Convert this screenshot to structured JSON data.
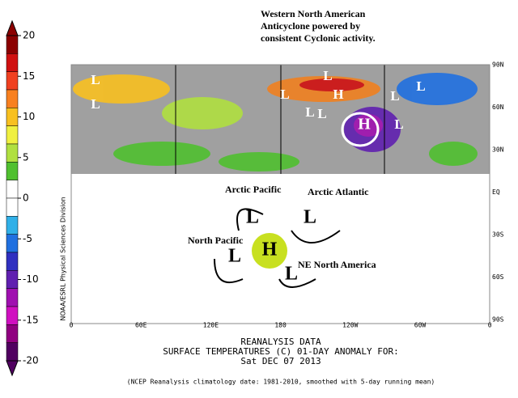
{
  "annotation": {
    "title_lines": [
      "Western North American",
      "Anticyclone powered by",
      "consistent Cyclonic activity."
    ]
  },
  "colorbar": {
    "ticks": [
      20,
      15,
      10,
      5,
      0,
      -5,
      -10,
      -15,
      -20
    ],
    "colors": [
      "#8b0000",
      "#d01010",
      "#f04020",
      "#f88020",
      "#f8c020",
      "#f0f040",
      "#b0e040",
      "#50c030",
      "#ffffff",
      "#ffffff",
      "#30b0e8",
      "#2070e0",
      "#3030c0",
      "#6020b0",
      "#a010b0",
      "#d010c0",
      "#900080",
      "#500060"
    ]
  },
  "map": {
    "lat_labels": [
      "90N",
      "60N",
      "30N",
      "EQ",
      "30S",
      "60S",
      "90S"
    ],
    "lon_labels": [
      "0",
      "60E",
      "120E",
      "180",
      "120W",
      "60W",
      "0"
    ],
    "credit": "NOAA/ESRL Physical Sciences Division",
    "map_letters": [
      "L",
      "L",
      "L",
      "L",
      "H",
      "L",
      "L",
      "L",
      "H",
      "L",
      "L"
    ]
  },
  "diagram": {
    "regions": [
      "Arctic Pacific",
      "Arctic Atlantic",
      "North Pacific",
      "NE North America"
    ],
    "letters": [
      "L",
      "L",
      "L",
      "H",
      "L"
    ]
  },
  "footer": {
    "line1": "REANALYSIS DATA",
    "line2": "SURFACE TEMPERATURES (C)    01-DAY ANOMALY FOR:",
    "line3": "Sat DEC 07 2013",
    "note": "(NCEP Reanalysis climatology date: 1981-2010, smoothed with 5-day running mean)"
  }
}
